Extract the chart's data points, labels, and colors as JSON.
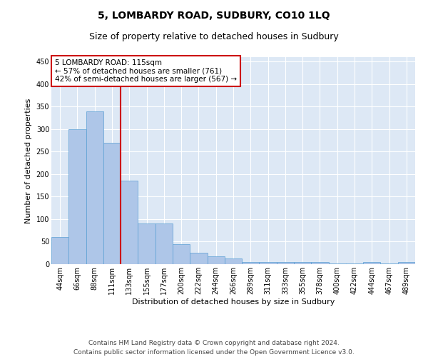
{
  "title": "5, LOMBARDY ROAD, SUDBURY, CO10 1LQ",
  "subtitle": "Size of property relative to detached houses in Sudbury",
  "xlabel": "Distribution of detached houses by size in Sudbury",
  "ylabel": "Number of detached properties",
  "categories": [
    "44sqm",
    "66sqm",
    "88sqm",
    "111sqm",
    "133sqm",
    "155sqm",
    "177sqm",
    "200sqm",
    "222sqm",
    "244sqm",
    "266sqm",
    "289sqm",
    "311sqm",
    "333sqm",
    "355sqm",
    "378sqm",
    "400sqm",
    "422sqm",
    "444sqm",
    "467sqm",
    "489sqm"
  ],
  "values": [
    60,
    300,
    340,
    270,
    185,
    90,
    90,
    45,
    25,
    18,
    12,
    5,
    4,
    4,
    4,
    4,
    1,
    1,
    4,
    1,
    4
  ],
  "bar_color": "#aec6e8",
  "bar_edge_color": "#5a9fd4",
  "vline_x_index": 3,
  "vline_color": "#cc0000",
  "annotation_box_text": "5 LOMBARDY ROAD: 115sqm\n← 57% of detached houses are smaller (761)\n42% of semi-detached houses are larger (567) →",
  "annotation_box_color": "#cc0000",
  "ylim": [
    0,
    460
  ],
  "yticks": [
    0,
    50,
    100,
    150,
    200,
    250,
    300,
    350,
    400,
    450
  ],
  "background_color": "#ffffff",
  "plot_bg_color": "#dde8f5",
  "grid_color": "#ffffff",
  "footer_text": "Contains HM Land Registry data © Crown copyright and database right 2024.\nContains public sector information licensed under the Open Government Licence v3.0.",
  "title_fontsize": 10,
  "subtitle_fontsize": 9,
  "xlabel_fontsize": 8,
  "ylabel_fontsize": 8,
  "tick_fontsize": 7,
  "annotation_fontsize": 7.5,
  "footer_fontsize": 6.5
}
